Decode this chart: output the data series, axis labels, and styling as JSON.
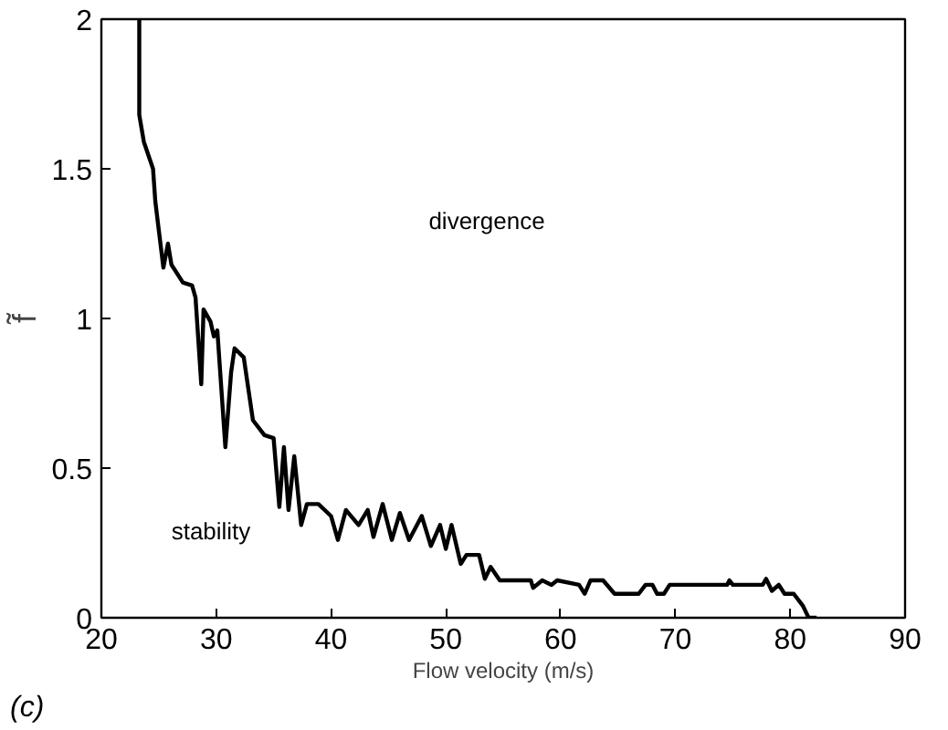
{
  "chart_data": {
    "type": "line",
    "xlabel": "Flow velocity (m/s)",
    "ylabel": "f̃",
    "xlim": [
      20,
      90
    ],
    "ylim": [
      0,
      2
    ],
    "xticks": [
      20,
      30,
      40,
      50,
      60,
      70,
      80,
      90
    ],
    "yticks": [
      0,
      0.5,
      1,
      1.5,
      2
    ],
    "grid": false,
    "marker": "none",
    "line_style": "solid",
    "series": [
      {
        "color": "#000000",
        "x": [
          23.3,
          23.3,
          23.7,
          24.5,
          24.7,
          25.4,
          25.8,
          26.1,
          27.1,
          27.9,
          28.2,
          28.7,
          28.9,
          29.5,
          29.8,
          30.1,
          30.8,
          31.3,
          31.6,
          32.4,
          33.2,
          34.2,
          35.0,
          35.5,
          35.9,
          36.3,
          36.8,
          37.4,
          37.9,
          38.9,
          40.0,
          40.6,
          41.3,
          42.4,
          43.2,
          43.7,
          44.5,
          45.3,
          46.0,
          46.8,
          47.9,
          48.7,
          49.5,
          50.0,
          50.5,
          51.3,
          51.8,
          52.9,
          53.4,
          53.9,
          54.7,
          57.4,
          57.6,
          58.4,
          59.2,
          59.7,
          61.6,
          62.1,
          62.6,
          63.7,
          64.7,
          66.8,
          67.4,
          68.0,
          68.4,
          69.0,
          69.5,
          74.5,
          74.7,
          75.0,
          77.6,
          77.9,
          78.4,
          79.0,
          79.5,
          80.3,
          81.1,
          81.6,
          82.3
        ],
        "values": [
          2.0,
          1.68,
          1.59,
          1.5,
          1.39,
          1.17,
          1.25,
          1.18,
          1.12,
          1.11,
          1.07,
          0.78,
          1.03,
          0.99,
          0.94,
          0.96,
          0.57,
          0.82,
          0.9,
          0.87,
          0.66,
          0.61,
          0.6,
          0.37,
          0.57,
          0.36,
          0.54,
          0.31,
          0.38,
          0.38,
          0.34,
          0.26,
          0.36,
          0.31,
          0.36,
          0.27,
          0.38,
          0.26,
          0.35,
          0.26,
          0.34,
          0.24,
          0.31,
          0.23,
          0.31,
          0.18,
          0.21,
          0.21,
          0.13,
          0.17,
          0.125,
          0.125,
          0.1,
          0.125,
          0.11,
          0.125,
          0.11,
          0.08,
          0.125,
          0.125,
          0.08,
          0.08,
          0.11,
          0.11,
          0.08,
          0.08,
          0.11,
          0.11,
          0.125,
          0.11,
          0.11,
          0.13,
          0.09,
          0.11,
          0.08,
          0.08,
          0.04,
          0.0,
          0.0
        ]
      }
    ],
    "annotations": [
      "divergence",
      "stability",
      "(c)"
    ]
  }
}
